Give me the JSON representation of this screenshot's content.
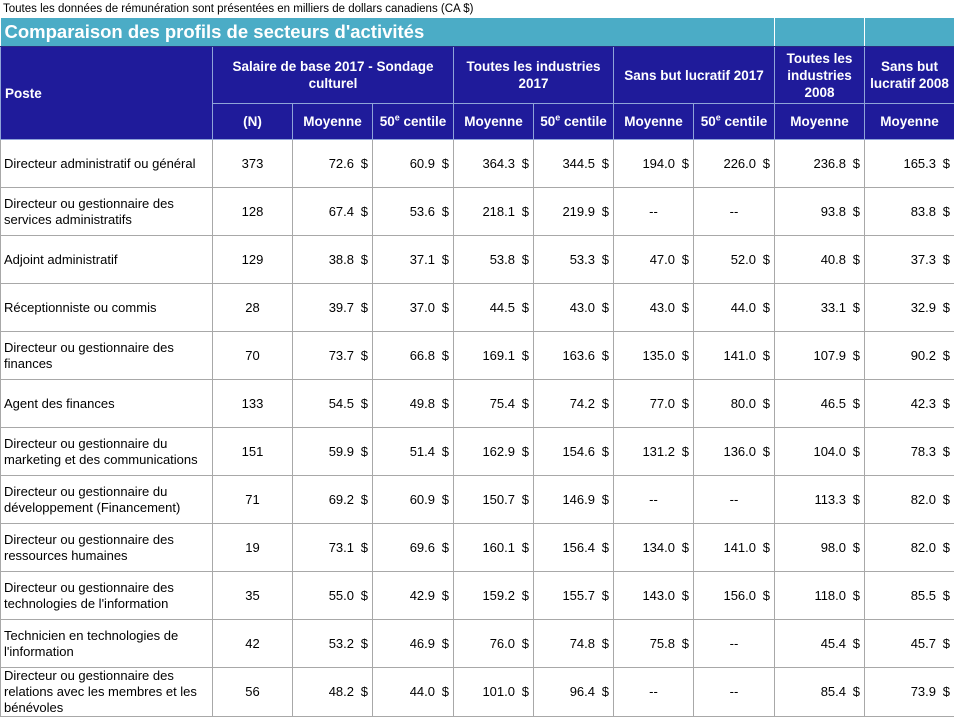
{
  "note": "Toutes les données de rémunération sont présentées en milliers de dollars canadiens (CA $)",
  "title": "Comparaison des profils de secteurs d'activités",
  "headers": {
    "poste": "Poste",
    "groups": [
      "Salaire de base 2017 - Sondage culturel",
      "Toutes les industries 2017",
      "Sans but lucratif 2017",
      "Toutes les industries 2008",
      "Sans but lucratif 2008"
    ],
    "sub": {
      "n": "(N)",
      "moyenne": "Moyenne",
      "centile_num": "50",
      "centile_sup": "e",
      "centile_word": " centile"
    }
  },
  "currency": "$",
  "dash": "--",
  "rows": [
    {
      "poste": "Directeur administratif ou général",
      "n": "373",
      "v": [
        "72.6",
        "60.9",
        "364.3",
        "344.5",
        "194.0",
        "226.0",
        "236.8",
        "165.3"
      ]
    },
    {
      "poste": "Directeur ou gestionnaire des services administratifs",
      "n": "128",
      "v": [
        "67.4",
        "53.6",
        "218.1",
        "219.9",
        "--",
        "--",
        "93.8",
        "83.8"
      ]
    },
    {
      "poste": "Adjoint administratif",
      "n": "129",
      "v": [
        "38.8",
        "37.1",
        "53.8",
        "53.3",
        "47.0",
        "52.0",
        "40.8",
        "37.3"
      ]
    },
    {
      "poste": "Réceptionniste ou commis",
      "n": "28",
      "v": [
        "39.7",
        "37.0",
        "44.5",
        "43.0",
        "43.0",
        "44.0",
        "33.1",
        "32.9"
      ]
    },
    {
      "poste": "Directeur ou gestionnaire des finances",
      "n": "70",
      "v": [
        "73.7",
        "66.8",
        "169.1",
        "163.6",
        "135.0",
        "141.0",
        "107.9",
        "90.2"
      ]
    },
    {
      "poste": "Agent des finances",
      "n": "133",
      "v": [
        "54.5",
        "49.8",
        "75.4",
        "74.2",
        "77.0",
        "80.0",
        "46.5",
        "42.3"
      ]
    },
    {
      "poste": "Directeur ou gestionnaire du marketing et des communications",
      "n": "151",
      "v": [
        "59.9",
        "51.4",
        "162.9",
        "154.6",
        "131.2",
        "136.0",
        "104.0",
        "78.3"
      ]
    },
    {
      "poste": "Directeur ou gestionnaire du développement (Financement)",
      "n": "71",
      "v": [
        "69.2",
        "60.9",
        "150.7",
        "146.9",
        "--",
        "--",
        "113.3",
        "82.0"
      ]
    },
    {
      "poste": "Directeur ou gestionnaire des ressources humaines",
      "n": "19",
      "v": [
        "73.1",
        "69.6",
        "160.1",
        "156.4",
        "134.0",
        "141.0",
        "98.0",
        "82.0"
      ]
    },
    {
      "poste": "Directeur ou gestionnaire des technologies de l'information",
      "n": "35",
      "v": [
        "55.0",
        "42.9",
        "159.2",
        "155.7",
        "143.0",
        "156.0",
        "118.0",
        "85.5"
      ]
    },
    {
      "poste": "Technicien en technologies de l'information",
      "n": "42",
      "v": [
        "53.2",
        "46.9",
        "76.0",
        "74.8",
        "75.8",
        "--",
        "45.4",
        "45.7"
      ]
    },
    {
      "poste": "Directeur ou gestionnaire des relations avec les membres et les bénévoles",
      "n": "56",
      "v": [
        "48.2",
        "44.0",
        "101.0",
        "96.4",
        "--",
        "--",
        "85.4",
        "73.9"
      ]
    }
  ]
}
